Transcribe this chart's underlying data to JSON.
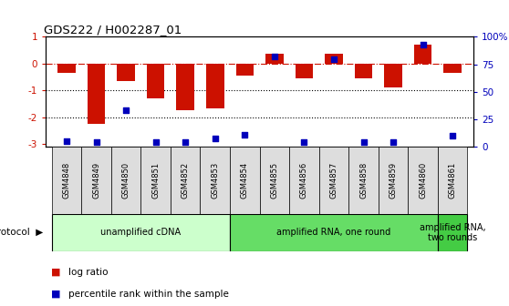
{
  "title": "GDS222 / H002287_01",
  "samples": [
    "GSM4848",
    "GSM4849",
    "GSM4850",
    "GSM4851",
    "GSM4852",
    "GSM4853",
    "GSM4854",
    "GSM4855",
    "GSM4856",
    "GSM4857",
    "GSM4858",
    "GSM4859",
    "GSM4860",
    "GSM4861"
  ],
  "log_ratio": [
    -0.35,
    -2.25,
    -0.65,
    -1.3,
    -1.75,
    -1.65,
    -0.45,
    0.35,
    -0.55,
    0.38,
    -0.55,
    -0.9,
    0.7,
    -0.35
  ],
  "percentile_rank": [
    5,
    4,
    33,
    4,
    4,
    8,
    11,
    82,
    4,
    80,
    4,
    4,
    93,
    10
  ],
  "ylim_left": [
    -3.1,
    1.0
  ],
  "ylim_right": [
    0,
    100
  ],
  "bar_color": "#cc1100",
  "dot_color": "#0000bb",
  "dotted_lines": [
    -1,
    -2
  ],
  "right_ticks": [
    0,
    25,
    50,
    75,
    100
  ],
  "right_tick_labels": [
    "0",
    "25",
    "50",
    "75",
    "100%"
  ],
  "left_ticks": [
    -3,
    -2,
    -1,
    0,
    1
  ],
  "protocol_groups": [
    {
      "label": "unamplified cDNA",
      "start": 0,
      "end": 5,
      "color": "#ccffcc"
    },
    {
      "label": "amplified RNA, one round",
      "start": 6,
      "end": 12,
      "color": "#66dd66"
    },
    {
      "label": "amplified RNA,\ntwo rounds",
      "start": 13,
      "end": 13,
      "color": "#44cc44"
    }
  ]
}
